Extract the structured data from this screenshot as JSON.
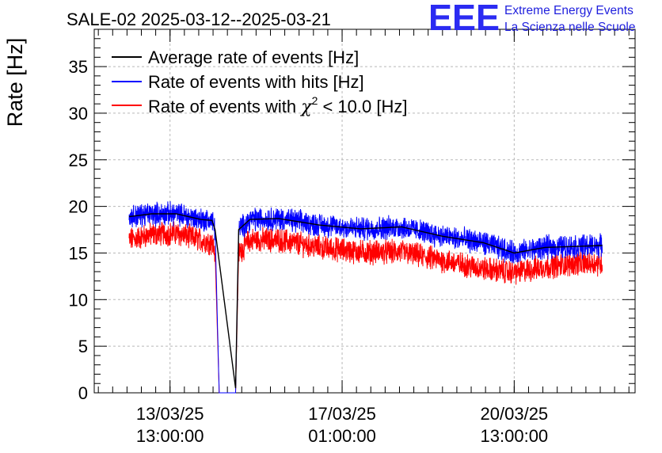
{
  "chart_data": {
    "type": "line",
    "title": "SALE-02 2025-03-12--2025-03-21",
    "xlabel": "",
    "ylabel": "Rate [Hz]",
    "ylim": [
      0,
      39
    ],
    "yticks": [
      0,
      5,
      10,
      15,
      20,
      25,
      30,
      35
    ],
    "xticks": [
      {
        "date": "13/03/25",
        "time": "13:00:00",
        "x_hours": 37
      },
      {
        "date": "17/03/25",
        "time": "01:00:00",
        "x_hours": 121
      },
      {
        "date": "20/03/25",
        "time": "13:00:00",
        "x_hours": 205
      }
    ],
    "x_unit": "hours since 2025-03-12 00:00",
    "xlim": [
      0,
      264
    ],
    "grid": true,
    "legend_position": "top-left",
    "series": [
      {
        "name": "Average rate of events [Hz]",
        "color": "#000000",
        "x": [
          17,
          28,
          40,
          52,
          57.5,
          59,
          69,
          70.5,
          76,
          90,
          110,
          130,
          150,
          170,
          190,
          205,
          220,
          235,
          248
        ],
        "y": [
          18.9,
          19.2,
          19.2,
          18.6,
          18.5,
          17.5,
          0.5,
          17.5,
          18.6,
          18.7,
          18.0,
          17.6,
          17.8,
          16.8,
          16.1,
          15.0,
          15.6,
          15.7,
          15.8
        ]
      },
      {
        "name": "Rate of events with hits [Hz]",
        "color": "#0000ff",
        "x": [
          17,
          28,
          40,
          52,
          57.5,
          59,
          61,
          67,
          69,
          70.5,
          76,
          90,
          110,
          130,
          150,
          170,
          190,
          205,
          220,
          235,
          248
        ],
        "y": [
          18.9,
          19.2,
          19.2,
          18.6,
          18.5,
          17.5,
          0,
          0,
          0,
          17.5,
          18.6,
          18.7,
          18.0,
          17.6,
          17.8,
          16.8,
          16.1,
          15.0,
          15.6,
          15.7,
          15.8
        ]
      },
      {
        "name": "Rate of events with χ² < 10.0 [Hz]",
        "color": "#ff0000",
        "x": [
          17,
          28,
          40,
          52,
          57.5,
          59,
          61,
          67,
          69,
          70.5,
          76,
          90,
          110,
          130,
          150,
          170,
          190,
          205,
          220,
          235,
          248
        ],
        "y": [
          16.4,
          17.0,
          17.1,
          16.4,
          16.1,
          15.0,
          0,
          0,
          0,
          15.0,
          16.4,
          16.4,
          15.6,
          15.1,
          15.1,
          14.2,
          13.3,
          12.9,
          13.5,
          13.9,
          13.9
        ]
      }
    ]
  },
  "legend": [
    {
      "label": "Average rate of events [Hz]",
      "color": "#000000"
    },
    {
      "label": "Rate of events with hits [Hz]",
      "color": "#0000ff"
    },
    {
      "label_pre": "Rate of events with ",
      "label_chi": "χ",
      "label_sup": "2",
      "label_post": " < 10.0 [Hz]",
      "color": "#ff0000"
    }
  ],
  "logo": {
    "mark": "EEE",
    "line1": "Extreme Energy Events",
    "line2": "La Scienza nelle Scuole"
  }
}
